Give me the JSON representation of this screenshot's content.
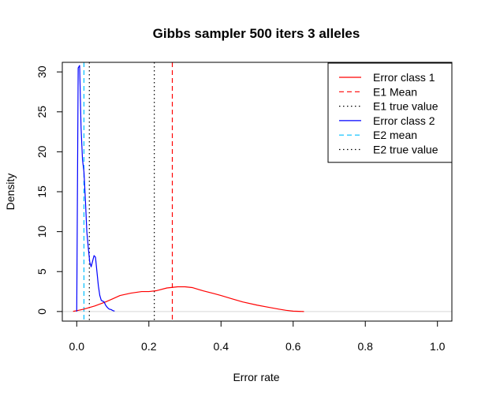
{
  "chart_data": {
    "type": "line",
    "title": "Gibbs sampler 500 iters 3 alleles",
    "xlabel": "Error rate",
    "ylabel": "Density",
    "xlim": [
      -0.04,
      1.04
    ],
    "ylim": [
      -1.2,
      31.2
    ],
    "x_ticks": [
      0.0,
      0.2,
      0.4,
      0.6,
      0.8,
      1.0
    ],
    "x_tick_labels": [
      "0.0",
      "0.2",
      "0.4",
      "0.6",
      "0.8",
      "1.0"
    ],
    "y_ticks": [
      0,
      5,
      10,
      15,
      20,
      25,
      30
    ],
    "y_tick_labels": [
      "0",
      "5",
      "10",
      "15",
      "20",
      "25",
      "30"
    ],
    "grid": false,
    "legend_position": "top-right",
    "series": [
      {
        "name": "Error class 1",
        "color": "#ff0000",
        "style": "solid",
        "x": [
          -0.01,
          0.0,
          0.02,
          0.05,
          0.08,
          0.1,
          0.12,
          0.15,
          0.18,
          0.2,
          0.22,
          0.25,
          0.28,
          0.3,
          0.32,
          0.35,
          0.38,
          0.4,
          0.43,
          0.46,
          0.5,
          0.53,
          0.56,
          0.58,
          0.6,
          0.63
        ],
        "y": [
          0.02,
          0.1,
          0.3,
          0.7,
          1.2,
          1.6,
          2.0,
          2.3,
          2.5,
          2.5,
          2.6,
          2.95,
          3.1,
          3.1,
          3.0,
          2.6,
          2.25,
          2.0,
          1.6,
          1.2,
          0.8,
          0.55,
          0.3,
          0.15,
          0.05,
          0.0
        ]
      },
      {
        "name": "Error class 2",
        "color": "#0000ff",
        "style": "solid",
        "x": [
          0.0,
          0.004,
          0.008,
          0.012,
          0.016,
          0.02,
          0.024,
          0.028,
          0.032,
          0.036,
          0.04,
          0.044,
          0.048,
          0.052,
          0.056,
          0.06,
          0.064,
          0.068,
          0.072,
          0.076,
          0.08,
          0.085,
          0.09,
          0.095,
          0.1,
          0.105
        ],
        "y": [
          0.0,
          30.5,
          30.8,
          23.0,
          19.0,
          17.5,
          14.0,
          10.0,
          8.0,
          6.2,
          5.6,
          6.3,
          7.0,
          6.8,
          5.0,
          3.2,
          2.0,
          1.4,
          1.3,
          1.2,
          0.8,
          0.5,
          0.3,
          0.25,
          0.12,
          0.05
        ]
      }
    ],
    "vlines": [
      {
        "name": "E1 Mean",
        "x": 0.265,
        "color": "#ff0000",
        "style": "dashed"
      },
      {
        "name": "E1 true value",
        "x": 0.215,
        "color": "#000000",
        "style": "dotted"
      },
      {
        "name": "E2 mean",
        "x": 0.02,
        "color": "#00bfff",
        "style": "dashed"
      },
      {
        "name": "E2 true value",
        "x": 0.035,
        "color": "#000000",
        "style": "dotted"
      }
    ],
    "legend": [
      {
        "label": "Error class 1",
        "color": "#ff0000",
        "style": "solid"
      },
      {
        "label": "E1 Mean",
        "color": "#ff0000",
        "style": "dashed"
      },
      {
        "label": "E1 true value",
        "color": "#000000",
        "style": "dotted"
      },
      {
        "label": "Error class 2",
        "color": "#0000ff",
        "style": "solid"
      },
      {
        "label": "E2 mean",
        "color": "#00bfff",
        "style": "dashed"
      },
      {
        "label": "E2 true value",
        "color": "#000000",
        "style": "dotted"
      }
    ]
  }
}
